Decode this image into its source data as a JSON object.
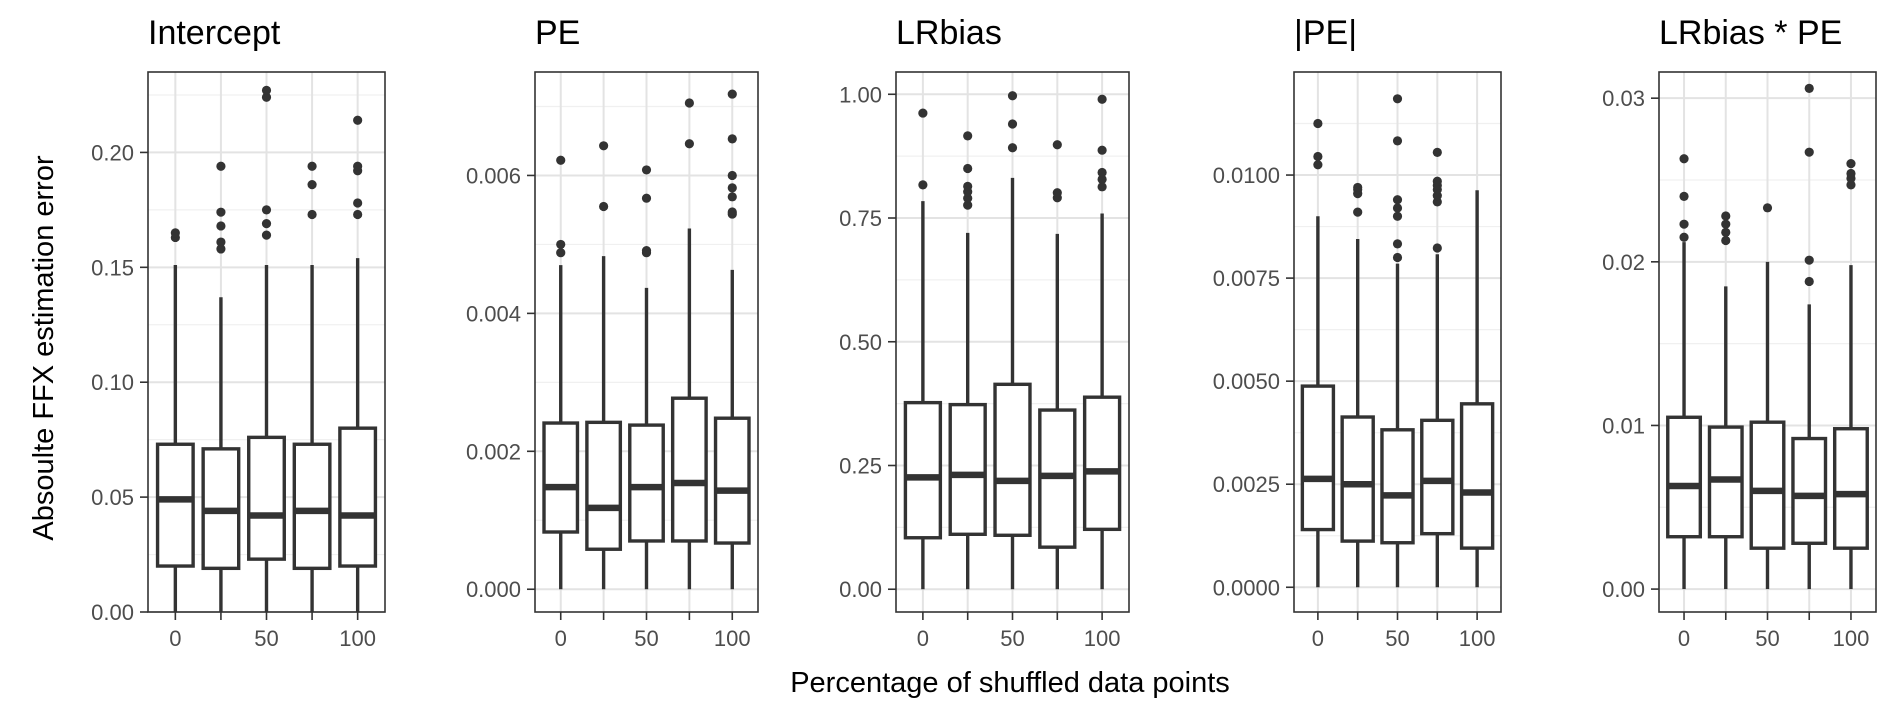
{
  "figure": {
    "ylabel": "Absoulte  FFX estimation error",
    "xlabel": "Percentage of shuffled data points"
  },
  "chart_data": [
    {
      "type": "boxplot",
      "title": "Intercept",
      "categories": [
        "0",
        "25",
        "50",
        "75",
        "100"
      ],
      "xticks": [
        "0",
        "50",
        "100"
      ],
      "ylim": [
        0,
        0.235
      ],
      "yticks": [
        "0.00",
        "0.05",
        "0.10",
        "0.15",
        "0.20"
      ],
      "boxes": [
        {
          "min": 0.0,
          "q1": 0.02,
          "median": 0.049,
          "q3": 0.073,
          "max": 0.151,
          "outliers": [
            0.163,
            0.165
          ]
        },
        {
          "min": 0.0,
          "q1": 0.019,
          "median": 0.044,
          "q3": 0.071,
          "max": 0.137,
          "outliers": [
            0.158,
            0.161,
            0.168,
            0.174,
            0.194
          ]
        },
        {
          "min": 0.0,
          "q1": 0.023,
          "median": 0.042,
          "q3": 0.076,
          "max": 0.151,
          "outliers": [
            0.164,
            0.169,
            0.175,
            0.224,
            0.227
          ]
        },
        {
          "min": 0.0,
          "q1": 0.019,
          "median": 0.044,
          "q3": 0.073,
          "max": 0.151,
          "outliers": [
            0.173,
            0.186,
            0.194
          ]
        },
        {
          "min": 0.0,
          "q1": 0.02,
          "median": 0.042,
          "q3": 0.08,
          "max": 0.154,
          "outliers": [
            0.173,
            0.178,
            0.192,
            0.194,
            0.214
          ]
        }
      ]
    },
    {
      "type": "boxplot",
      "title": "PE",
      "categories": [
        "0",
        "25",
        "50",
        "75",
        "100"
      ],
      "xticks": [
        "0",
        "50",
        "100"
      ],
      "ylim": [
        -0.00033,
        0.0075
      ],
      "yticks": [
        "0.000",
        "0.002",
        "0.004",
        "0.006"
      ],
      "boxes": [
        {
          "min": 0.0,
          "q1": 0.00083,
          "median": 0.00148,
          "q3": 0.00241,
          "max": 0.0047,
          "outliers": [
            0.00488,
            0.005,
            0.00622
          ]
        },
        {
          "min": 0.0,
          "q1": 0.00058,
          "median": 0.00118,
          "q3": 0.00242,
          "max": 0.00483,
          "outliers": [
            0.00555,
            0.00643
          ]
        },
        {
          "min": 0.0,
          "q1": 0.0007,
          "median": 0.00148,
          "q3": 0.00238,
          "max": 0.00437,
          "outliers": [
            0.00488,
            0.00491,
            0.00567,
            0.00608
          ]
        },
        {
          "min": 0.0,
          "q1": 0.0007,
          "median": 0.00154,
          "q3": 0.00277,
          "max": 0.00523,
          "outliers": [
            0.00646,
            0.00705
          ]
        },
        {
          "min": 0.0,
          "q1": 0.00067,
          "median": 0.00143,
          "q3": 0.00248,
          "max": 0.00463,
          "outliers": [
            0.00544,
            0.00547,
            0.00569,
            0.00582,
            0.006,
            0.00653,
            0.00718
          ]
        }
      ]
    },
    {
      "type": "boxplot",
      "title": "LRbias",
      "categories": [
        "0",
        "25",
        "50",
        "75",
        "100"
      ],
      "xticks": [
        "0",
        "50",
        "100"
      ],
      "ylim": [
        -0.046,
        1.045
      ],
      "yticks": [
        "0.00",
        "0.25",
        "0.50",
        "0.75",
        "1.00"
      ],
      "boxes": [
        {
          "min": 0.0,
          "q1": 0.104,
          "median": 0.226,
          "q3": 0.377,
          "max": 0.784,
          "outliers": [
            0.817,
            0.962
          ]
        },
        {
          "min": 0.0,
          "q1": 0.111,
          "median": 0.231,
          "q3": 0.373,
          "max": 0.72,
          "outliers": [
            0.776,
            0.79,
            0.803,
            0.814,
            0.85,
            0.916
          ]
        },
        {
          "min": 0.0,
          "q1": 0.109,
          "median": 0.219,
          "q3": 0.414,
          "max": 0.831,
          "outliers": [
            0.892,
            0.94,
            0.997
          ]
        },
        {
          "min": 0.0,
          "q1": 0.085,
          "median": 0.229,
          "q3": 0.362,
          "max": 0.718,
          "outliers": [
            0.791,
            0.801,
            0.898
          ]
        },
        {
          "min": 0.0,
          "q1": 0.121,
          "median": 0.238,
          "q3": 0.388,
          "max": 0.759,
          "outliers": [
            0.813,
            0.828,
            0.842,
            0.887,
            0.99
          ]
        }
      ]
    },
    {
      "type": "boxplot",
      "title": "|PE|",
      "categories": [
        "0",
        "25",
        "50",
        "75",
        "100"
      ],
      "xticks": [
        "0",
        "50",
        "100"
      ],
      "ylim": [
        -0.0006,
        0.0125
      ],
      "yticks": [
        "0.0000",
        "0.0025",
        "0.0050",
        "0.0075",
        "0.0100"
      ],
      "boxes": [
        {
          "min": 0.0,
          "q1": 0.0014,
          "median": 0.00263,
          "q3": 0.00488,
          "max": 0.009,
          "outliers": [
            0.01025,
            0.01045,
            0.01125
          ]
        },
        {
          "min": 0.0,
          "q1": 0.00112,
          "median": 0.0025,
          "q3": 0.00413,
          "max": 0.00845,
          "outliers": [
            0.0091,
            0.00955,
            0.00965,
            0.0097
          ]
        },
        {
          "min": 0.0,
          "q1": 0.00108,
          "median": 0.00223,
          "q3": 0.00382,
          "max": 0.00785,
          "outliers": [
            0.008,
            0.00833,
            0.009,
            0.0092,
            0.0094,
            0.01083,
            0.01185
          ]
        },
        {
          "min": 0.0,
          "q1": 0.0013,
          "median": 0.00258,
          "q3": 0.00405,
          "max": 0.00808,
          "outliers": [
            0.00823,
            0.00935,
            0.0095,
            0.00965,
            0.00975,
            0.00985,
            0.01055
          ]
        },
        {
          "min": 0.0,
          "q1": 0.00095,
          "median": 0.0023,
          "q3": 0.00445,
          "max": 0.00963,
          "outliers": []
        }
      ]
    },
    {
      "type": "boxplot",
      "title": "LRbias * PE",
      "categories": [
        "0",
        "25",
        "50",
        "75",
        "100"
      ],
      "xticks": [
        "0",
        "50",
        "100"
      ],
      "ylim": [
        -0.0014,
        0.0316
      ],
      "yticks": [
        "0.00",
        "0.01",
        "0.02",
        "0.03"
      ],
      "boxes": [
        {
          "min": 0.0,
          "q1": 0.0032,
          "median": 0.0063,
          "q3": 0.0105,
          "max": 0.0212,
          "outliers": [
            0.0215,
            0.0223,
            0.024,
            0.0263
          ]
        },
        {
          "min": 0.0,
          "q1": 0.0032,
          "median": 0.0067,
          "q3": 0.0099,
          "max": 0.0185,
          "outliers": [
            0.0213,
            0.0218,
            0.0223,
            0.0228
          ]
        },
        {
          "min": 0.0,
          "q1": 0.0025,
          "median": 0.006,
          "q3": 0.0102,
          "max": 0.02,
          "outliers": [
            0.0233
          ]
        },
        {
          "min": 0.0,
          "q1": 0.0028,
          "median": 0.0057,
          "q3": 0.0092,
          "max": 0.0174,
          "outliers": [
            0.0188,
            0.0201,
            0.0267,
            0.0306
          ]
        },
        {
          "min": 0.0,
          "q1": 0.0025,
          "median": 0.0058,
          "q3": 0.0098,
          "max": 0.0198,
          "outliers": [
            0.0247,
            0.0251,
            0.0254,
            0.026
          ]
        }
      ]
    }
  ]
}
